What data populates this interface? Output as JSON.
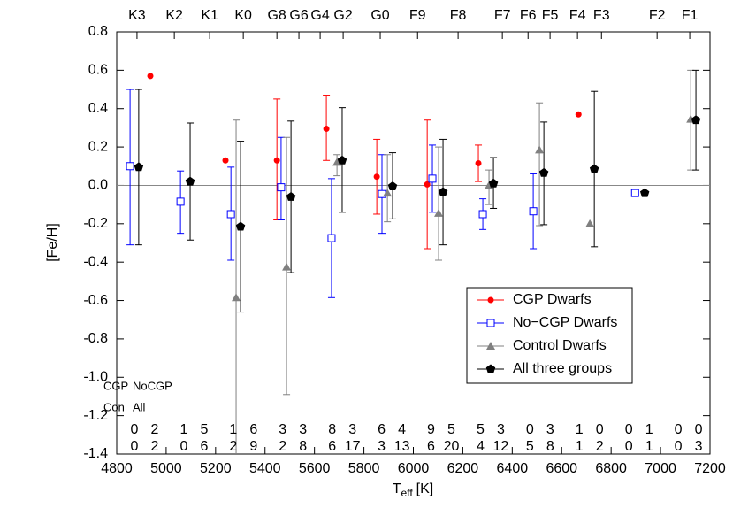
{
  "chart_data": {
    "type": "errorbar-scatter",
    "xlabel": {
      "main": "T",
      "sub": "eff",
      "unit": "[K]"
    },
    "ylabel": "[Fe/H]",
    "xlim": [
      4800,
      7200
    ],
    "ylim": [
      -1.4,
      0.8
    ],
    "xticks": [
      4800,
      5000,
      5200,
      5400,
      5600,
      5800,
      6000,
      6200,
      6400,
      6600,
      6800,
      7000,
      7200
    ],
    "yticks": [
      -1.4,
      -1.2,
      {
        "value": -1,
        "label": "-1.0"
      },
      -0.8,
      -0.6,
      -0.4,
      -0.2,
      {
        "value": 0,
        "label": "0.0"
      },
      0.2,
      0.4,
      0.6,
      0.8
    ],
    "hline": 0,
    "top_axis": {
      "labels": [
        "K3",
        "K2",
        "K1",
        "K0",
        "G8",
        "G6",
        "G4",
        "G2",
        "G0",
        "F9",
        "F8",
        "F7",
        "F6",
        "F5",
        "F4",
        "F3",
        "F2",
        "F1"
      ],
      "x": [
        4882,
        5033,
        5176,
        5312,
        5448,
        5537,
        5623,
        5716,
        5866,
        6017,
        6181,
        6360,
        6464,
        6553,
        6664,
        6761,
        6986,
        7118
      ]
    },
    "legend": "lower right",
    "series": [
      {
        "name": "CGP Dwarfs",
        "color": "#ff0000",
        "marker": "circle",
        "x": [
          4936,
          5240,
          5448,
          5648,
          5852,
          6056,
          6263,
          6668
        ],
        "values": [
          0.57,
          0.13,
          0.13,
          0.295,
          0.045,
          0.005,
          0.115,
          0.37
        ],
        "lower": [
          null,
          null,
          -0.18,
          0.13,
          -0.15,
          -0.33,
          0.02,
          null
        ],
        "upper": [
          null,
          null,
          0.45,
          0.47,
          0.24,
          0.34,
          0.21,
          null
        ]
      },
      {
        "name": "No−CGP Dwarfs",
        "color": "#0000ff",
        "marker": "square-open",
        "x": [
          4854,
          5058,
          5262,
          5465,
          5669,
          5873,
          6077,
          6281,
          6485,
          6897
        ],
        "values": [
          0.1,
          -0.085,
          -0.15,
          -0.01,
          -0.275,
          -0.045,
          0.035,
          -0.15,
          -0.135,
          -0.04
        ],
        "lower": [
          -0.31,
          -0.25,
          -0.39,
          -0.18,
          -0.585,
          -0.25,
          -0.14,
          -0.23,
          -0.33,
          null
        ],
        "upper": [
          0.5,
          0.075,
          0.095,
          0.25,
          0.035,
          0.16,
          0.21,
          -0.07,
          0.06,
          null
        ]
      },
      {
        "name": "Control Dwarfs",
        "color": "#808080",
        "marker": "triangle",
        "x": [
          5283,
          5487,
          5691,
          5895,
          6102,
          6306,
          6510,
          6714,
          7122
        ],
        "values": [
          -0.585,
          -0.425,
          0.12,
          -0.04,
          -0.145,
          0.0,
          0.185,
          -0.2,
          0.345
        ],
        "lower": [
          -1.52,
          -1.09,
          0.05,
          -0.19,
          -0.39,
          -0.1,
          -0.21,
          null,
          0.08
        ],
        "upper": [
          0.34,
          0.25,
          0.16,
          0.16,
          0.2,
          0.08,
          0.43,
          null,
          0.6
        ]
      },
      {
        "name": "All three groups",
        "color": "#000000",
        "marker": "pentagon",
        "x": [
          4889,
          5097,
          5301,
          5505,
          5712,
          5916,
          6120,
          6324,
          6528,
          6732,
          6936,
          7143
        ],
        "values": [
          0.095,
          0.02,
          -0.215,
          -0.06,
          0.13,
          -0.005,
          -0.035,
          0.01,
          0.065,
          0.085,
          -0.04,
          0.34
        ],
        "lower": [
          -0.31,
          -0.285,
          -0.66,
          -0.455,
          -0.14,
          -0.175,
          -0.31,
          -0.12,
          -0.205,
          -0.32,
          null,
          0.08
        ],
        "upper": [
          0.5,
          0.325,
          0.23,
          0.335,
          0.405,
          0.17,
          0.24,
          0.145,
          0.33,
          0.49,
          null,
          0.6
        ]
      }
    ],
    "count_key": [
      [
        "CGP",
        "NoCGP"
      ],
      [
        "Con",
        "All"
      ]
    ],
    "counts": [
      [
        [
          0,
          1,
          1,
          3,
          8,
          6,
          9,
          5,
          0,
          1,
          0,
          0
        ],
        [
          2,
          5,
          6,
          3,
          3,
          4,
          5,
          3,
          3,
          0,
          1,
          0
        ]
      ],
      [
        [
          0,
          0,
          2,
          2,
          6,
          3,
          6,
          4,
          5,
          1,
          0,
          0
        ],
        [
          2,
          6,
          9,
          8,
          17,
          13,
          20,
          12,
          8,
          2,
          1,
          3
        ]
      ]
    ]
  }
}
